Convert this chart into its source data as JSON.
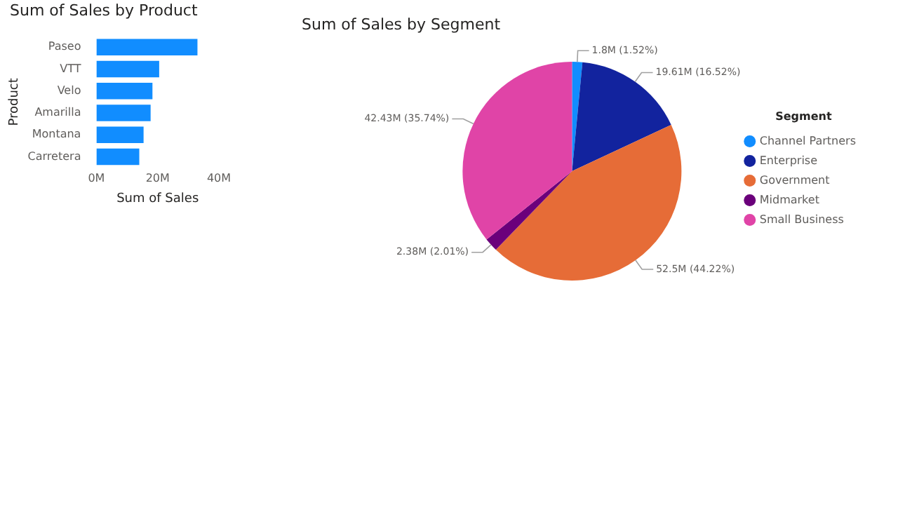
{
  "chart_data": [
    {
      "type": "bar",
      "title": "Sum of Sales by Product",
      "orientation": "horizontal",
      "xlabel": "Sum of Sales",
      "ylabel": "Product",
      "categories": [
        "Paseo",
        "VTT",
        "Velo",
        "Amarilla",
        "Montana",
        "Carretera"
      ],
      "values": [
        33.0,
        20.5,
        18.3,
        17.7,
        15.4,
        14.0
      ],
      "color": "#118dff",
      "xlim": [
        0,
        40
      ],
      "xticks": [
        {
          "value": 0,
          "label": "0M"
        },
        {
          "value": 20,
          "label": "20M"
        },
        {
          "value": 40,
          "label": "40M"
        }
      ]
    },
    {
      "type": "pie",
      "title": "Sum of Sales by Segment",
      "legend_title": "Segment",
      "legend": "right",
      "categories": [
        "Channel Partners",
        "Enterprise",
        "Government",
        "Midmarket",
        "Small Business"
      ],
      "values": [
        1.52,
        16.52,
        44.22,
        2.01,
        35.74
      ],
      "colors": [
        "#118dff",
        "#12239e",
        "#e66c37",
        "#6b007b",
        "#e044a7"
      ],
      "value_labels": [
        "1.8M (1.52%)",
        "19.61M (16.52%)",
        "52.5M (44.22%)",
        "2.38M (2.01%)",
        "42.43M (35.74%)"
      ]
    }
  ]
}
